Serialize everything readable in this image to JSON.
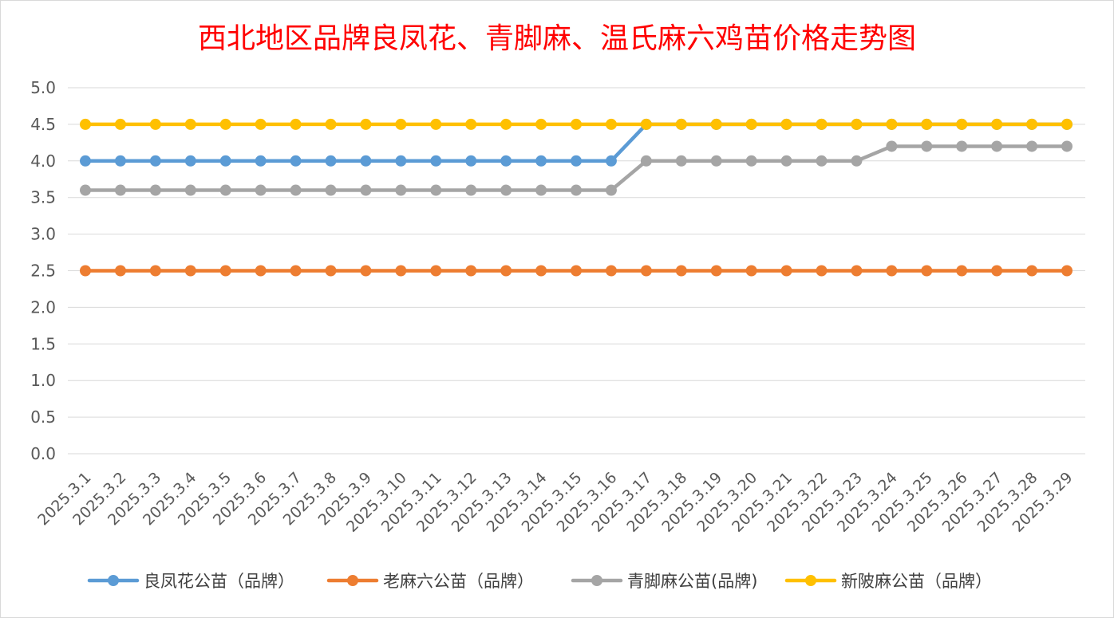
{
  "chart_data": {
    "type": "line",
    "title": "西北地区品牌良凤花、青脚麻、温氏麻六鸡苗价格走势图",
    "xlabel": "",
    "ylabel": "",
    "ylim": [
      0,
      5.0
    ],
    "yticks": [
      "0.0",
      "0.5",
      "1.0",
      "1.5",
      "2.0",
      "2.5",
      "3.0",
      "3.5",
      "4.0",
      "4.5",
      "5.0"
    ],
    "grid": true,
    "legend_position": "bottom",
    "categories": [
      "2025.3.1",
      "2025.3.2",
      "2025.3.3",
      "2025.3.4",
      "2025.3.5",
      "2025.3.6",
      "2025.3.7",
      "2025.3.8",
      "2025.3.9",
      "2025.3.10",
      "2025.3.11",
      "2025.3.12",
      "2025.3.13",
      "2025.3.14",
      "2025.3.15",
      "2025.3.16",
      "2025.3.17",
      "2025.3.18",
      "2025.3.19",
      "2025.3.20",
      "2025.3.21",
      "2025.3.22",
      "2025.3.23",
      "2025.3.24",
      "2025.3.25",
      "2025.3.26",
      "2025.3.27",
      "2025.3.28",
      "2025.3.29"
    ],
    "series": [
      {
        "name": "良凤花公苗（品牌）",
        "color": "#5b9bd5",
        "values": [
          4.0,
          4.0,
          4.0,
          4.0,
          4.0,
          4.0,
          4.0,
          4.0,
          4.0,
          4.0,
          4.0,
          4.0,
          4.0,
          4.0,
          4.0,
          4.0,
          4.5,
          4.5,
          4.5,
          4.5,
          4.5,
          4.5,
          4.5,
          4.5,
          4.5,
          4.5,
          4.5,
          4.5,
          4.5
        ]
      },
      {
        "name": "老麻六公苗（品牌）",
        "color": "#ed7d31",
        "values": [
          2.5,
          2.5,
          2.5,
          2.5,
          2.5,
          2.5,
          2.5,
          2.5,
          2.5,
          2.5,
          2.5,
          2.5,
          2.5,
          2.5,
          2.5,
          2.5,
          2.5,
          2.5,
          2.5,
          2.5,
          2.5,
          2.5,
          2.5,
          2.5,
          2.5,
          2.5,
          2.5,
          2.5,
          2.5
        ]
      },
      {
        "name": "青脚麻公苗(品牌)",
        "color": "#a5a5a5",
        "values": [
          3.6,
          3.6,
          3.6,
          3.6,
          3.6,
          3.6,
          3.6,
          3.6,
          3.6,
          3.6,
          3.6,
          3.6,
          3.6,
          3.6,
          3.6,
          3.6,
          4.0,
          4.0,
          4.0,
          4.0,
          4.0,
          4.0,
          4.0,
          4.2,
          4.2,
          4.2,
          4.2,
          4.2,
          4.2
        ]
      },
      {
        "name": "新陂麻公苗（品牌）",
        "color": "#ffc000",
        "values": [
          4.5,
          4.5,
          4.5,
          4.5,
          4.5,
          4.5,
          4.5,
          4.5,
          4.5,
          4.5,
          4.5,
          4.5,
          4.5,
          4.5,
          4.5,
          4.5,
          4.5,
          4.5,
          4.5,
          4.5,
          4.5,
          4.5,
          4.5,
          4.5,
          4.5,
          4.5,
          4.5,
          4.5,
          4.5
        ]
      }
    ]
  }
}
